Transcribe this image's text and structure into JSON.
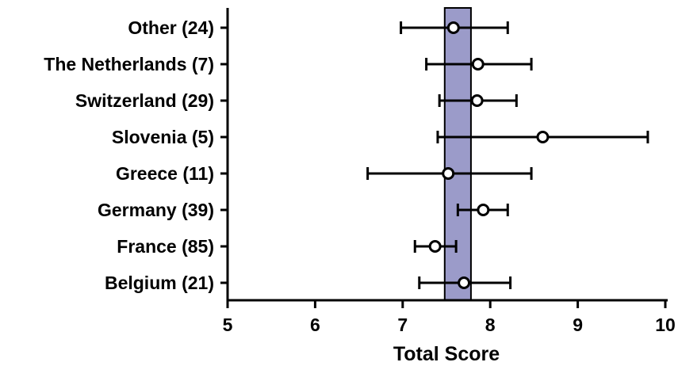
{
  "chart_data": {
    "type": "forest",
    "xlabel": "Total Score",
    "xlim": [
      5,
      10
    ],
    "xticks": [
      "5",
      "6",
      "7",
      "8",
      "9",
      "10"
    ],
    "reference_band": {
      "x_min": 7.48,
      "x_max": 7.78,
      "color": "#9b9bc9"
    },
    "categories": [
      "Other (24)",
      "The Netherlands (7)",
      "Switzerland (29)",
      "Slovenia (5)",
      "Greece (11)",
      "Germany (39)",
      "France (85)",
      "Belgium (21)"
    ],
    "means": [
      7.58,
      7.86,
      7.85,
      8.6,
      7.52,
      7.92,
      7.37,
      7.7
    ],
    "lower": [
      6.98,
      7.27,
      7.42,
      7.4,
      6.6,
      7.63,
      7.14,
      7.19
    ],
    "upper": [
      8.2,
      8.47,
      8.3,
      9.8,
      8.47,
      8.2,
      7.61,
      8.23
    ],
    "grid": false
  }
}
